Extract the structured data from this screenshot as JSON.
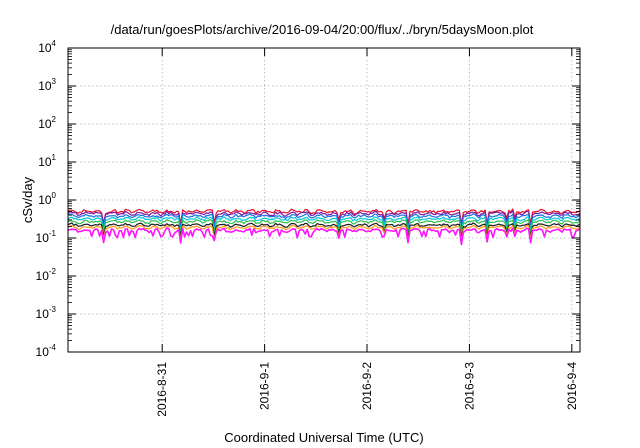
{
  "chart_data": {
    "type": "line",
    "title": "/data/run/goesPlots/archive/2016-09-04/20:00/flux/../bryn/5daysMoon.plot",
    "xlabel": "Coordinated Universal Time (UTC)",
    "ylabel": "cSv/day",
    "y_scale": "log",
    "ylim": [
      0.0001,
      10000
    ],
    "y_ticks": [
      {
        "base": "10",
        "exp": "4",
        "value": 10000
      },
      {
        "base": "10",
        "exp": "3",
        "value": 1000
      },
      {
        "base": "10",
        "exp": "2",
        "value": 100
      },
      {
        "base": "10",
        "exp": "1",
        "value": 10
      },
      {
        "base": "10",
        "exp": "0",
        "value": 1
      },
      {
        "base": "10",
        "exp": "-1",
        "value": 0.1
      },
      {
        "base": "10",
        "exp": "-2",
        "value": 0.01
      },
      {
        "base": "10",
        "exp": "-3",
        "value": 0.001
      },
      {
        "base": "10",
        "exp": "-4",
        "value": 0.0001
      }
    ],
    "x_range_days": [
      0,
      5
    ],
    "x_ticks": [
      {
        "label": "2016-8-31",
        "day": 0.92
      },
      {
        "label": "2016-9-1",
        "day": 1.92
      },
      {
        "label": "2016-9-2",
        "day": 2.92
      },
      {
        "label": "2016-9-3",
        "day": 3.92
      },
      {
        "label": "2016-9-4",
        "day": 4.92
      }
    ],
    "grid": true,
    "series": [
      {
        "color": "#e8102a",
        "level": 0.5,
        "jitter": 0.13
      },
      {
        "color": "#7a1aa6",
        "level": 0.44,
        "jitter": 0.12
      },
      {
        "color": "#1f6fe0",
        "level": 0.38,
        "jitter": 0.11
      },
      {
        "color": "#00c8d8",
        "level": 0.32,
        "jitter": 0.1
      },
      {
        "color": "#2fbf4a",
        "level": 0.27,
        "jitter": 0.09
      },
      {
        "color": "#1a1a1a",
        "level": 0.22,
        "jitter": 0.08
      },
      {
        "color": "#ff9a1a",
        "level": 0.19,
        "jitter": 0.07
      },
      {
        "color": "#ff14ff",
        "level": 0.16,
        "jitter": 0.12
      }
    ]
  }
}
